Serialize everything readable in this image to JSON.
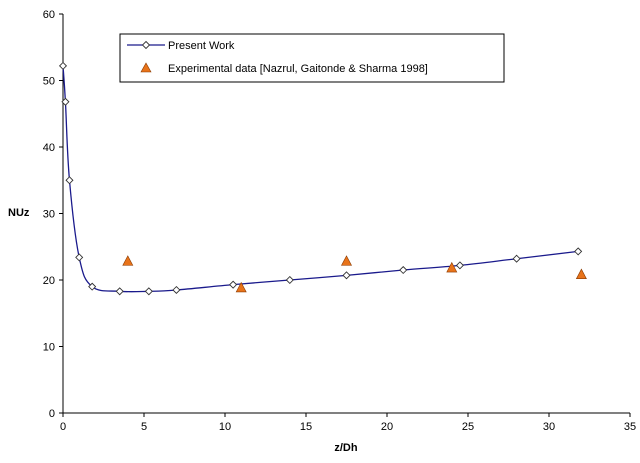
{
  "chart_data": {
    "type": "line",
    "xlabel": "z/Dh",
    "ylabel": "NUz",
    "xlim": [
      0,
      35
    ],
    "ylim": [
      0,
      60
    ],
    "xticks": [
      "0",
      "5",
      "10",
      "15",
      "20",
      "25",
      "30",
      "35"
    ],
    "yticks": [
      "0",
      "10",
      "20",
      "30",
      "40",
      "50",
      "60"
    ],
    "grid": false,
    "legend_position": "top-center",
    "series": [
      {
        "name": "Present Work",
        "marker": "diamond",
        "color": "#1a1a8c",
        "smooth": true,
        "x": [
          0,
          0.15,
          0.4,
          1.0,
          1.8,
          3.5,
          5.3,
          7.0,
          10.5,
          14.0,
          17.5,
          21.0,
          24.5,
          28.0,
          31.8
        ],
        "y": [
          52.2,
          46.8,
          35.0,
          23.4,
          19.0,
          18.3,
          18.3,
          18.5,
          19.3,
          20.0,
          20.7,
          21.5,
          22.2,
          23.2,
          24.3
        ]
      },
      {
        "name": "Experimental data [Nazrul, Gaitonde & Sharma 1998]",
        "marker": "triangle",
        "color": "#e8731a",
        "x": [
          4.0,
          11.0,
          17.5,
          24.0,
          32.0
        ],
        "y": [
          22.8,
          18.8,
          22.8,
          21.8,
          20.8
        ]
      }
    ]
  }
}
